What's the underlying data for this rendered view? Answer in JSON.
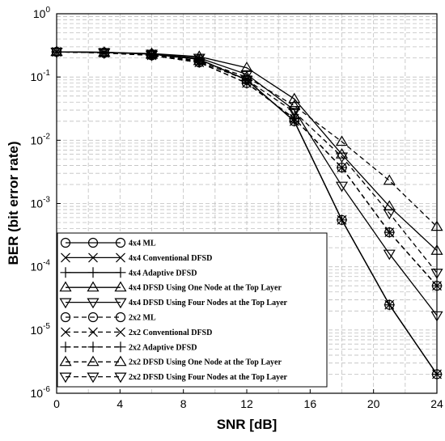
{
  "chart_data": {
    "type": "line",
    "title": "",
    "xlabel": "SNR [dB]",
    "ylabel": "BER (bit error rate)",
    "xlim": [
      0,
      24
    ],
    "ylim": [
      1e-06,
      1
    ],
    "yscale": "log",
    "grid": true,
    "legend_position": "bottom-left",
    "x_ticks": [
      "0",
      "4",
      "8",
      "12",
      "16",
      "20",
      "24"
    ],
    "y_ticks": [
      {
        "base": "10",
        "exp": "0"
      },
      {
        "base": "10",
        "exp": "-1"
      },
      {
        "base": "10",
        "exp": "-2"
      },
      {
        "base": "10",
        "exp": "-3"
      },
      {
        "base": "10",
        "exp": "-4"
      },
      {
        "base": "10",
        "exp": "-5"
      },
      {
        "base": "10",
        "exp": "-6"
      }
    ],
    "x": [
      0,
      3,
      6,
      9,
      12,
      15,
      18,
      21,
      24
    ],
    "series": [
      {
        "name": "4x4 ML",
        "marker": "circle",
        "dash": false,
        "values": [
          0.25,
          0.245,
          0.23,
          0.19,
          0.09,
          0.02,
          0.00055,
          2.5e-05,
          2e-06
        ]
      },
      {
        "name": "4x4 Conventional DFSD",
        "marker": "x",
        "dash": false,
        "values": [
          0.25,
          0.245,
          0.23,
          0.19,
          0.09,
          0.02,
          0.00055,
          2.5e-05,
          2e-06
        ]
      },
      {
        "name": "4x4 Adaptive DFSD",
        "marker": "plus",
        "dash": false,
        "values": [
          0.25,
          0.245,
          0.23,
          0.19,
          0.09,
          0.02,
          0.00055,
          2.5e-05,
          2e-06
        ]
      },
      {
        "name": "4x4 DFSD Using One Node at the Top Layer",
        "marker": "triangle-up",
        "dash": false,
        "values": [
          0.25,
          0.245,
          0.235,
          0.21,
          0.14,
          0.045,
          0.006,
          0.0009,
          0.00018
        ]
      },
      {
        "name": "4x4 DFSD  Using Four Nodes at the Top Layer",
        "marker": "triangle-down",
        "dash": false,
        "values": [
          0.25,
          0.245,
          0.232,
          0.2,
          0.11,
          0.03,
          0.0019,
          0.00016,
          1.7e-05
        ]
      },
      {
        "name": "2x2 ML",
        "marker": "circle",
        "dash": true,
        "values": [
          0.25,
          0.24,
          0.22,
          0.17,
          0.08,
          0.022,
          0.0037,
          0.00035,
          5e-05
        ]
      },
      {
        "name": "2x2 Conventional DFSD",
        "marker": "x",
        "dash": true,
        "values": [
          0.25,
          0.24,
          0.22,
          0.17,
          0.08,
          0.022,
          0.0037,
          0.00035,
          5e-05
        ]
      },
      {
        "name": "2x2 Adaptive DFSD",
        "marker": "plus",
        "dash": true,
        "values": [
          0.25,
          0.24,
          0.22,
          0.17,
          0.08,
          0.022,
          0.0037,
          0.00035,
          5e-05
        ]
      },
      {
        "name": "2x2 DFSD Using One Node at the Top Layer",
        "marker": "triangle-up",
        "dash": true,
        "values": [
          0.25,
          0.242,
          0.225,
          0.18,
          0.1,
          0.035,
          0.0095,
          0.0023,
          0.00043
        ]
      },
      {
        "name": "2x2 DFSD  Using Four Nodes at the Top Layer",
        "marker": "triangle-down",
        "dash": true,
        "values": [
          0.25,
          0.241,
          0.222,
          0.175,
          0.09,
          0.028,
          0.0055,
          0.0007,
          8e-05
        ]
      }
    ]
  }
}
